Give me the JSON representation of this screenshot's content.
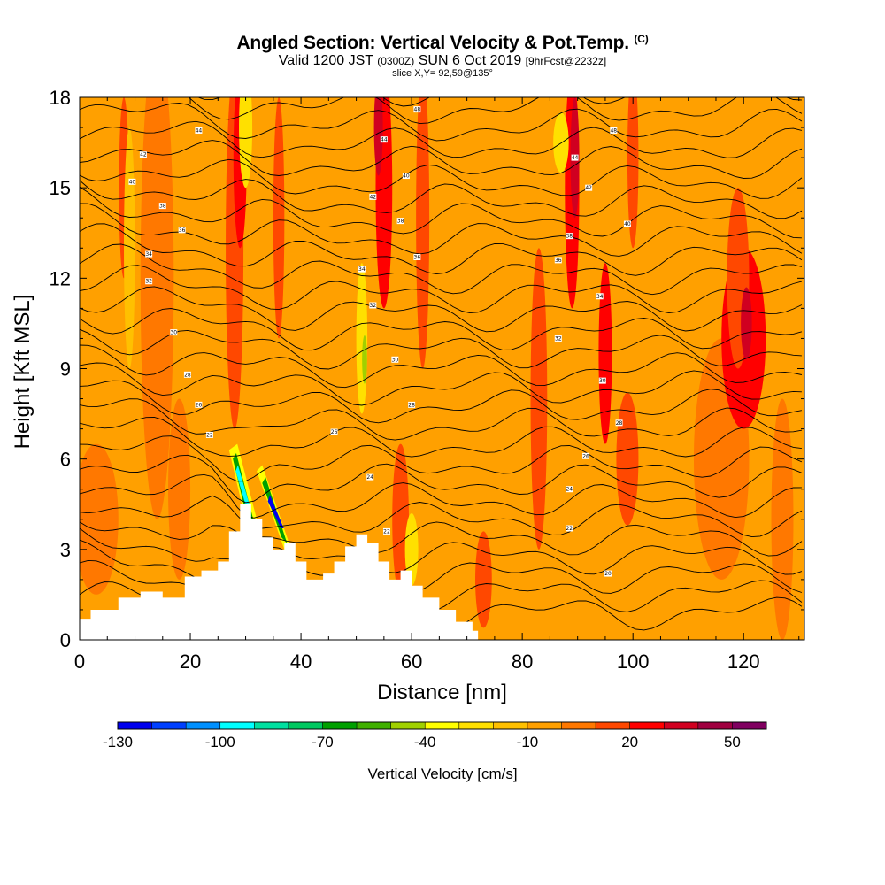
{
  "header": {
    "title_main": "Angled Section: Vertical Velocity & Pot.Temp.",
    "title_mark": "(C)",
    "line2_a": "Valid 1200 JST",
    "line2_b": "(0300Z)",
    "line2_c": "SUN 6 Oct 2019",
    "line2_d": "[9hrFcst@2232z]",
    "line3": "slice X,Y= 92,59@135°"
  },
  "chart_data": {
    "type": "heatmap",
    "xlabel": "Distance [nm]",
    "ylabel": "Height [Kft MSL]",
    "xlim": [
      0,
      131
    ],
    "ylim": [
      0,
      18
    ],
    "x_ticks": [
      0,
      20,
      40,
      60,
      80,
      100,
      120
    ],
    "y_ticks": [
      0,
      3,
      6,
      9,
      12,
      15,
      18
    ],
    "colorbar": {
      "title": "Vertical Velocity [cm/s]",
      "tick_labels": [
        "-130",
        "-100",
        "-70",
        "-40",
        "-10",
        "20",
        "50"
      ],
      "tick_values": [
        -130,
        -100,
        -70,
        -40,
        -10,
        20,
        50
      ],
      "bins_start": -130,
      "bin_width": 10,
      "colors": [
        "#0000ee",
        "#0040ff",
        "#0090ff",
        "#00ffff",
        "#00e0a0",
        "#00c860",
        "#00a000",
        "#40b000",
        "#a0d000",
        "#ffff00",
        "#ffe000",
        "#ffc000",
        "#ffa000",
        "#ff7800",
        "#ff4800",
        "#ff0000",
        "#d00020",
        "#a00040",
        "#800060"
      ]
    },
    "terrain_kft": [
      [
        0,
        0.7
      ],
      [
        2,
        1.0
      ],
      [
        7,
        1.4
      ],
      [
        11,
        1.6
      ],
      [
        15,
        1.4
      ],
      [
        19,
        2.1
      ],
      [
        22,
        2.3
      ],
      [
        25,
        2.6
      ],
      [
        27,
        3.6
      ],
      [
        29,
        4.5
      ],
      [
        31,
        4.0
      ],
      [
        33,
        3.4
      ],
      [
        35,
        3.0
      ],
      [
        37,
        3.2
      ],
      [
        39,
        2.6
      ],
      [
        41,
        2.0
      ],
      [
        44,
        2.2
      ],
      [
        46,
        2.6
      ],
      [
        48,
        3.1
      ],
      [
        50,
        3.5
      ],
      [
        52,
        3.2
      ],
      [
        54,
        2.6
      ],
      [
        56,
        2.0
      ],
      [
        58,
        2.3
      ],
      [
        60,
        1.8
      ],
      [
        62,
        1.4
      ],
      [
        65,
        1.0
      ],
      [
        68,
        0.6
      ],
      [
        71,
        0.3
      ],
      [
        72,
        0.1
      ]
    ],
    "theta_contour_labels": [
      {
        "text": "44",
        "x": 21.5,
        "y": 16.9
      },
      {
        "text": "42",
        "x": 11.5,
        "y": 16.1
      },
      {
        "text": "40",
        "x": 9.5,
        "y": 15.2
      },
      {
        "text": "38",
        "x": 15,
        "y": 14.4
      },
      {
        "text": "36",
        "x": 18.5,
        "y": 13.6
      },
      {
        "text": "34",
        "x": 12.5,
        "y": 12.8
      },
      {
        "text": "32",
        "x": 12.5,
        "y": 11.9
      },
      {
        "text": "30",
        "x": 17,
        "y": 10.2
      },
      {
        "text": "28",
        "x": 19.5,
        "y": 8.8
      },
      {
        "text": "26",
        "x": 21.5,
        "y": 7.8
      },
      {
        "text": "22",
        "x": 23.5,
        "y": 6.8
      },
      {
        "text": "48",
        "x": 61,
        "y": 17.6
      },
      {
        "text": "44",
        "x": 55,
        "y": 16.6
      },
      {
        "text": "40",
        "x": 59,
        "y": 15.4
      },
      {
        "text": "42",
        "x": 53,
        "y": 14.7
      },
      {
        "text": "38",
        "x": 58,
        "y": 13.9
      },
      {
        "text": "36",
        "x": 61,
        "y": 12.7
      },
      {
        "text": "34",
        "x": 51,
        "y": 12.3
      },
      {
        "text": "32",
        "x": 53,
        "y": 11.1
      },
      {
        "text": "30",
        "x": 57,
        "y": 9.3
      },
      {
        "text": "28",
        "x": 60,
        "y": 7.8
      },
      {
        "text": "26",
        "x": 46,
        "y": 6.9
      },
      {
        "text": "24",
        "x": 52.5,
        "y": 5.4
      },
      {
        "text": "22",
        "x": 55.5,
        "y": 3.6
      },
      {
        "text": "48",
        "x": 96.5,
        "y": 16.9
      },
      {
        "text": "44",
        "x": 89.5,
        "y": 16.0
      },
      {
        "text": "42",
        "x": 92,
        "y": 15.0
      },
      {
        "text": "40",
        "x": 99,
        "y": 13.8
      },
      {
        "text": "38",
        "x": 88.5,
        "y": 13.4
      },
      {
        "text": "36",
        "x": 86.5,
        "y": 12.6
      },
      {
        "text": "34",
        "x": 94,
        "y": 11.4
      },
      {
        "text": "32",
        "x": 86.5,
        "y": 10.0
      },
      {
        "text": "30",
        "x": 94.5,
        "y": 8.6
      },
      {
        "text": "28",
        "x": 97.5,
        "y": 7.2
      },
      {
        "text": "26",
        "x": 91.5,
        "y": 6.1
      },
      {
        "text": "24",
        "x": 88.5,
        "y": 5.0
      },
      {
        "text": "22",
        "x": 88.5,
        "y": 3.7
      },
      {
        "text": "20",
        "x": 95.5,
        "y": 2.2
      }
    ]
  }
}
